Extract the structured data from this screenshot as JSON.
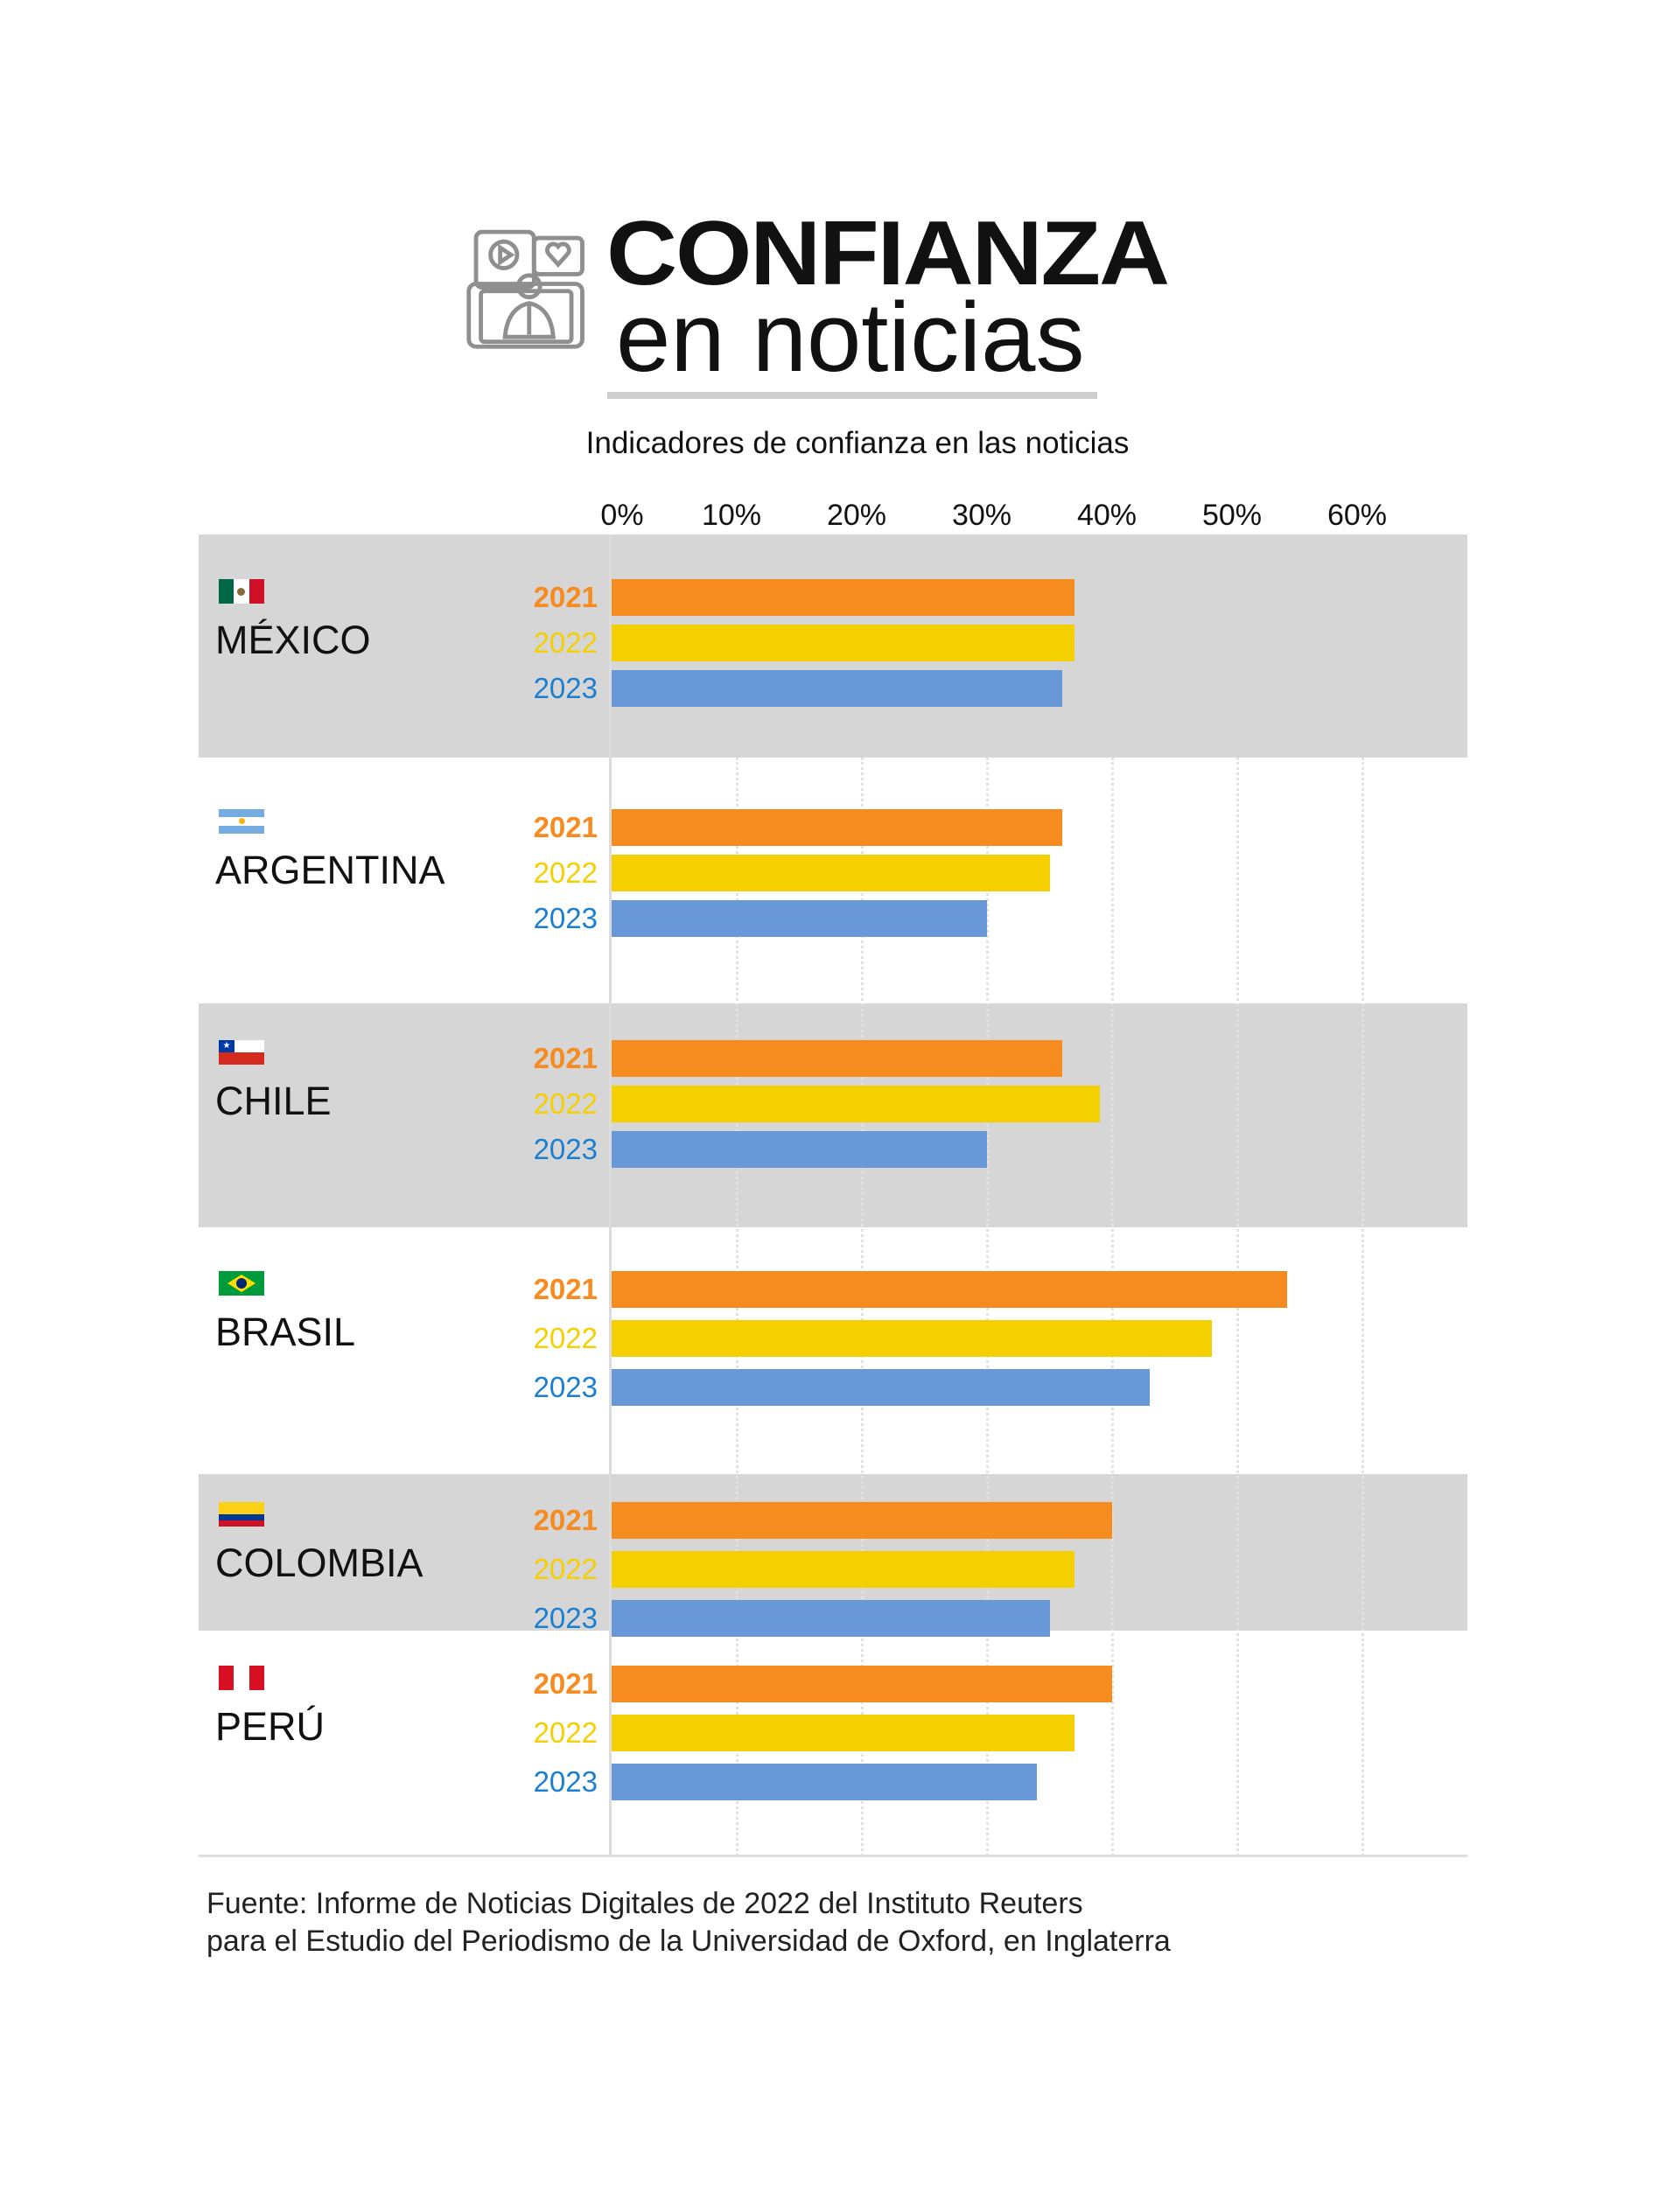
{
  "header": {
    "title_line1": "CONFIANZA",
    "title_line2": "en noticias",
    "icon": "news-broadcast-icon"
  },
  "chart_data": {
    "type": "bar",
    "orientation": "horizontal",
    "title": "CONFIANZA en noticias",
    "subtitle": "Indicadores de confianza en las noticias",
    "xlim": [
      0,
      60
    ],
    "x_ticks": [
      "0%",
      "10%",
      "20%",
      "30%",
      "40%",
      "50%",
      "60%"
    ],
    "x_tick_values": [
      0,
      10,
      20,
      30,
      40,
      50,
      60
    ],
    "categories": [
      "MÉXICO",
      "ARGENTINA",
      "CHILE",
      "BRASIL",
      "COLOMBIA",
      "PERÚ"
    ],
    "series": [
      {
        "name": "2021",
        "color": "#f68b1f",
        "values": [
          37,
          36,
          36,
          54,
          40,
          40
        ]
      },
      {
        "name": "2022",
        "color": "#f5d000",
        "values": [
          37,
          35,
          39,
          48,
          37,
          37
        ]
      },
      {
        "name": "2023",
        "color": "#6898d8",
        "values": [
          36,
          30,
          30,
          43,
          35,
          34
        ]
      }
    ],
    "year_label_colors": [
      "#f68b1f",
      "#f5cf00",
      "#1a7fd0"
    ],
    "grid": true
  },
  "source": {
    "line1": "Fuente: Informe de Noticias Digitales de 2022 del Instituto Reuters",
    "line2": "para el Estudio del Periodismo de la Universidad de Oxford, en Inglaterra"
  }
}
